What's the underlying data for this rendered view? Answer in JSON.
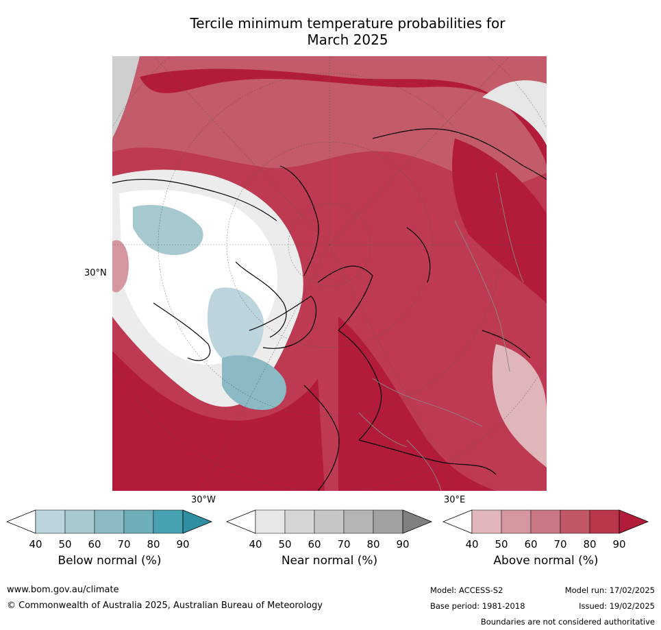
{
  "title": {
    "line1": "Tercile minimum temperature probabilities for",
    "line2": "March 2025"
  },
  "map": {
    "projection": "north-polar-stereographic",
    "labels": {
      "lat_left": "30°N",
      "lon_bottom_left": "30°W",
      "lon_bottom_right": "30°E"
    }
  },
  "colorbars": [
    {
      "title": "Below normal (%)",
      "ticks": [
        "40",
        "50",
        "60",
        "70",
        "80",
        "90"
      ],
      "colors": [
        "#ffffff",
        "#bcd5dc",
        "#a6c8cf",
        "#8bbac4",
        "#6daeb8",
        "#47a1b0",
        "#2f8fa1"
      ]
    },
    {
      "title": "Near normal (%)",
      "ticks": [
        "40",
        "50",
        "60",
        "70",
        "80",
        "90"
      ],
      "colors": [
        "#ffffff",
        "#e6e6e6",
        "#d6d6d6",
        "#c6c6c6",
        "#b4b4b4",
        "#a2a2a2",
        "#808080"
      ]
    },
    {
      "title": "Above normal (%)",
      "ticks": [
        "40",
        "50",
        "60",
        "70",
        "80",
        "90"
      ],
      "colors": [
        "#ffffff",
        "#e0b6bb",
        "#d4979f",
        "#c97883",
        "#c05868",
        "#b8354a",
        "#b21c3a"
      ]
    }
  ],
  "footer": {
    "website": "www.bom.gov.au/climate",
    "copyright": "© Commonwealth of Australia 2025, Australian Bureau of Meteorology",
    "model": "Model: ACCESS-S2",
    "base_period": "Base period: 1981-2018",
    "model_run": "Model run: 17/02/2025",
    "issued": "Issued: 19/02/2025",
    "disclaimer": "Boundaries are not considered authoritative"
  }
}
